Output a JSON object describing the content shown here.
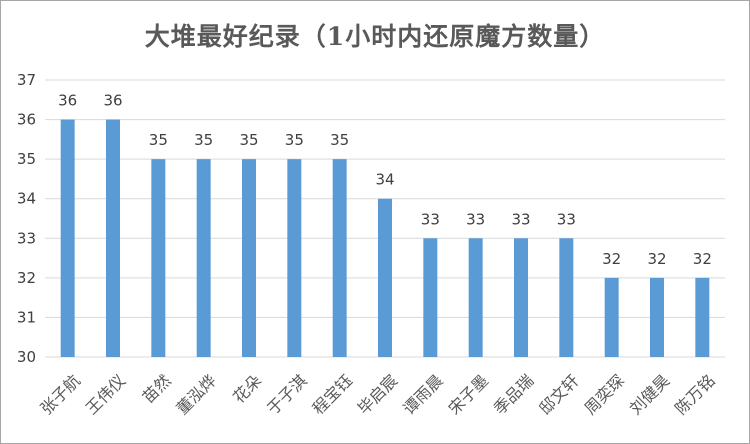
{
  "chart_data": {
    "type": "bar",
    "title": "大堆最好纪录（1小时内还原魔方数量）",
    "categories": [
      "张子航",
      "王伟仪",
      "苗然",
      "董泓烨",
      "花朵",
      "于子淇",
      "程宝钰",
      "毕启宸",
      "谭雨晨",
      "宋子墨",
      "季品瑞",
      "邸文轩",
      "周奕琛",
      "刘健昊",
      "陈万铭"
    ],
    "values": [
      36,
      36,
      35,
      35,
      35,
      35,
      35,
      34,
      33,
      33,
      33,
      33,
      32,
      32,
      32
    ],
    "ylim": [
      30,
      37
    ],
    "yticks": [
      30,
      31,
      32,
      33,
      34,
      35,
      36,
      37
    ],
    "xlabel": "",
    "ylabel": "",
    "grid": true,
    "bar_color": "#5b9bd5",
    "gridline_color": "#d9d9d9",
    "data_labels": true
  }
}
